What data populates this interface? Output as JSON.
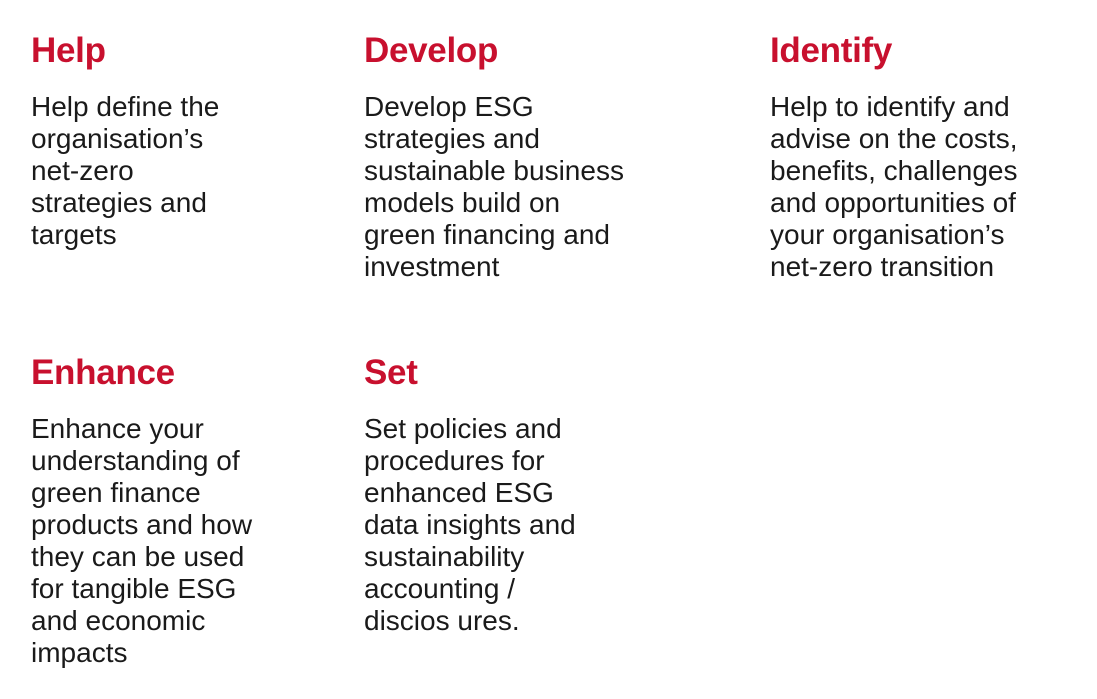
{
  "cards": [
    {
      "title": "Help",
      "body": "Help define the\norganisation’s\nnet-zero\nstrategies and\ntargets"
    },
    {
      "title": "Develop",
      "body": "Develop ESG\nstrategies and\nsustainable business\nmodels build on\ngreen financing and\ninvestment"
    },
    {
      "title": "Identify",
      "body": "Help to identify and\nadvise on the costs,\nbenefits, challenges\nand opportunities of\nyour organisation’s\nnet-zero transition"
    },
    {
      "title": "Enhance",
      "body": "Enhance your\nunderstanding of\ngreen finance\nproducts and how\nthey can be used\nfor tangible ESG\nand economic\nimpacts"
    },
    {
      "title": "Set",
      "body": "Set policies and\nprocedures for\nenhanced ESG\ndata insights and\nsustainability\naccounting /\ndiscios ures."
    }
  ]
}
